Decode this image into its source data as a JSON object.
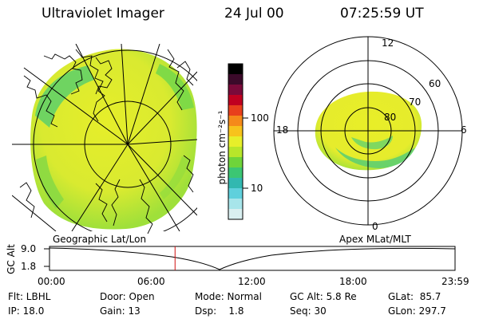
{
  "header": {
    "instrument": "Ultraviolet Imager",
    "date": "24 Jul 00",
    "time": "07:25:59 UT"
  },
  "colorbar": {
    "unit_label": "photon cm⁻²s⁻¹",
    "ticks": [
      "100",
      "10"
    ],
    "colors": [
      "#000000",
      "#3b0a2a",
      "#7a0a3a",
      "#c00020",
      "#e8401c",
      "#f58a1a",
      "#f7c31c",
      "#e7ef2a",
      "#b8e62a",
      "#6fd43a",
      "#3cc673",
      "#32b8b0",
      "#5fd0dc",
      "#a7e5ea",
      "#d9eff0"
    ]
  },
  "polar": {
    "lat_labels": [
      "60",
      "70",
      "80"
    ],
    "mlt_labels": {
      "top": "12",
      "left": "18",
      "right": "6",
      "bottom": "0"
    }
  },
  "timeline": {
    "left_label": "Geographic Lat/Lon",
    "right_label": "Apex MLat/MLT",
    "ylabel": "GC Alt",
    "y_ticks": [
      "9.0",
      "1.8"
    ],
    "x_ticks": [
      "00:00",
      "06:00",
      "12:00",
      "18:00",
      "23:59"
    ],
    "current_time_hours": 7.43,
    "marker_color": "#d01010"
  },
  "info": {
    "filter": "Flt: LBHL",
    "ip": "IP: 18.0",
    "door": "Door: Open",
    "gain": "Gain: 13",
    "mode": "Mode: Normal",
    "dsp": "Dsp:    1.8",
    "gc_alt": "GC Alt: 5.8 Re",
    "seq": "Seq: 30",
    "glat": "GLat:  85.7",
    "glon": "GLon: 297.7"
  }
}
